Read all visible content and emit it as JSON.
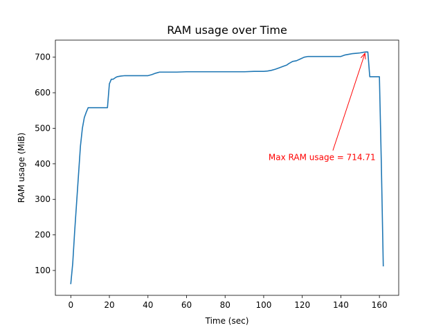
{
  "chart_data": {
    "type": "line",
    "title": "RAM usage over Time",
    "xlabel": "Time (sec)",
    "ylabel": "RAM usage (MiB)",
    "xlim": [
      -8,
      170
    ],
    "ylim": [
      30,
      748
    ],
    "xticks": [
      0,
      20,
      40,
      60,
      80,
      100,
      120,
      140,
      160
    ],
    "yticks": [
      100,
      200,
      300,
      400,
      500,
      600,
      700
    ],
    "grid": false,
    "line_color": "#1f77b4",
    "annotation": {
      "text": "Max RAM usage = 714.71",
      "xy": [
        152.5,
        714.71
      ],
      "xytext": [
        102.5,
        418
      ],
      "color": "#ff0000"
    },
    "series": [
      {
        "x": [
          0,
          1,
          2,
          3,
          4,
          5,
          6,
          7,
          8,
          9,
          10,
          12,
          14,
          16,
          18,
          19,
          20,
          21,
          22,
          23,
          24,
          25,
          26,
          28,
          30,
          32,
          34,
          36,
          38,
          40,
          42,
          44,
          46,
          48,
          50,
          55,
          60,
          65,
          70,
          75,
          80,
          85,
          90,
          95,
          100,
          102,
          104,
          106,
          108,
          110,
          112,
          113,
          115,
          117,
          119,
          121,
          123,
          125,
          130,
          135,
          140,
          142,
          144,
          146,
          148,
          150,
          152,
          153,
          154,
          155,
          157,
          159,
          160,
          161,
          162
        ],
        "y": [
          63,
          120,
          210,
          290,
          370,
          450,
          500,
          530,
          545,
          558,
          558,
          558,
          558,
          558,
          558,
          558,
          625,
          638,
          638,
          642,
          645,
          646,
          647,
          648,
          648,
          648,
          648,
          648,
          648,
          648,
          651,
          655,
          658,
          658,
          658,
          658,
          659,
          659,
          659,
          659,
          659,
          659,
          659,
          660,
          660,
          661,
          663,
          666,
          670,
          674,
          678,
          682,
          688,
          690,
          695,
          700,
          702,
          702,
          702,
          702,
          702,
          706,
          708,
          710,
          711,
          712,
          714,
          714.71,
          714.5,
          645,
          645,
          645,
          645,
          400,
          113
        ]
      }
    ]
  }
}
